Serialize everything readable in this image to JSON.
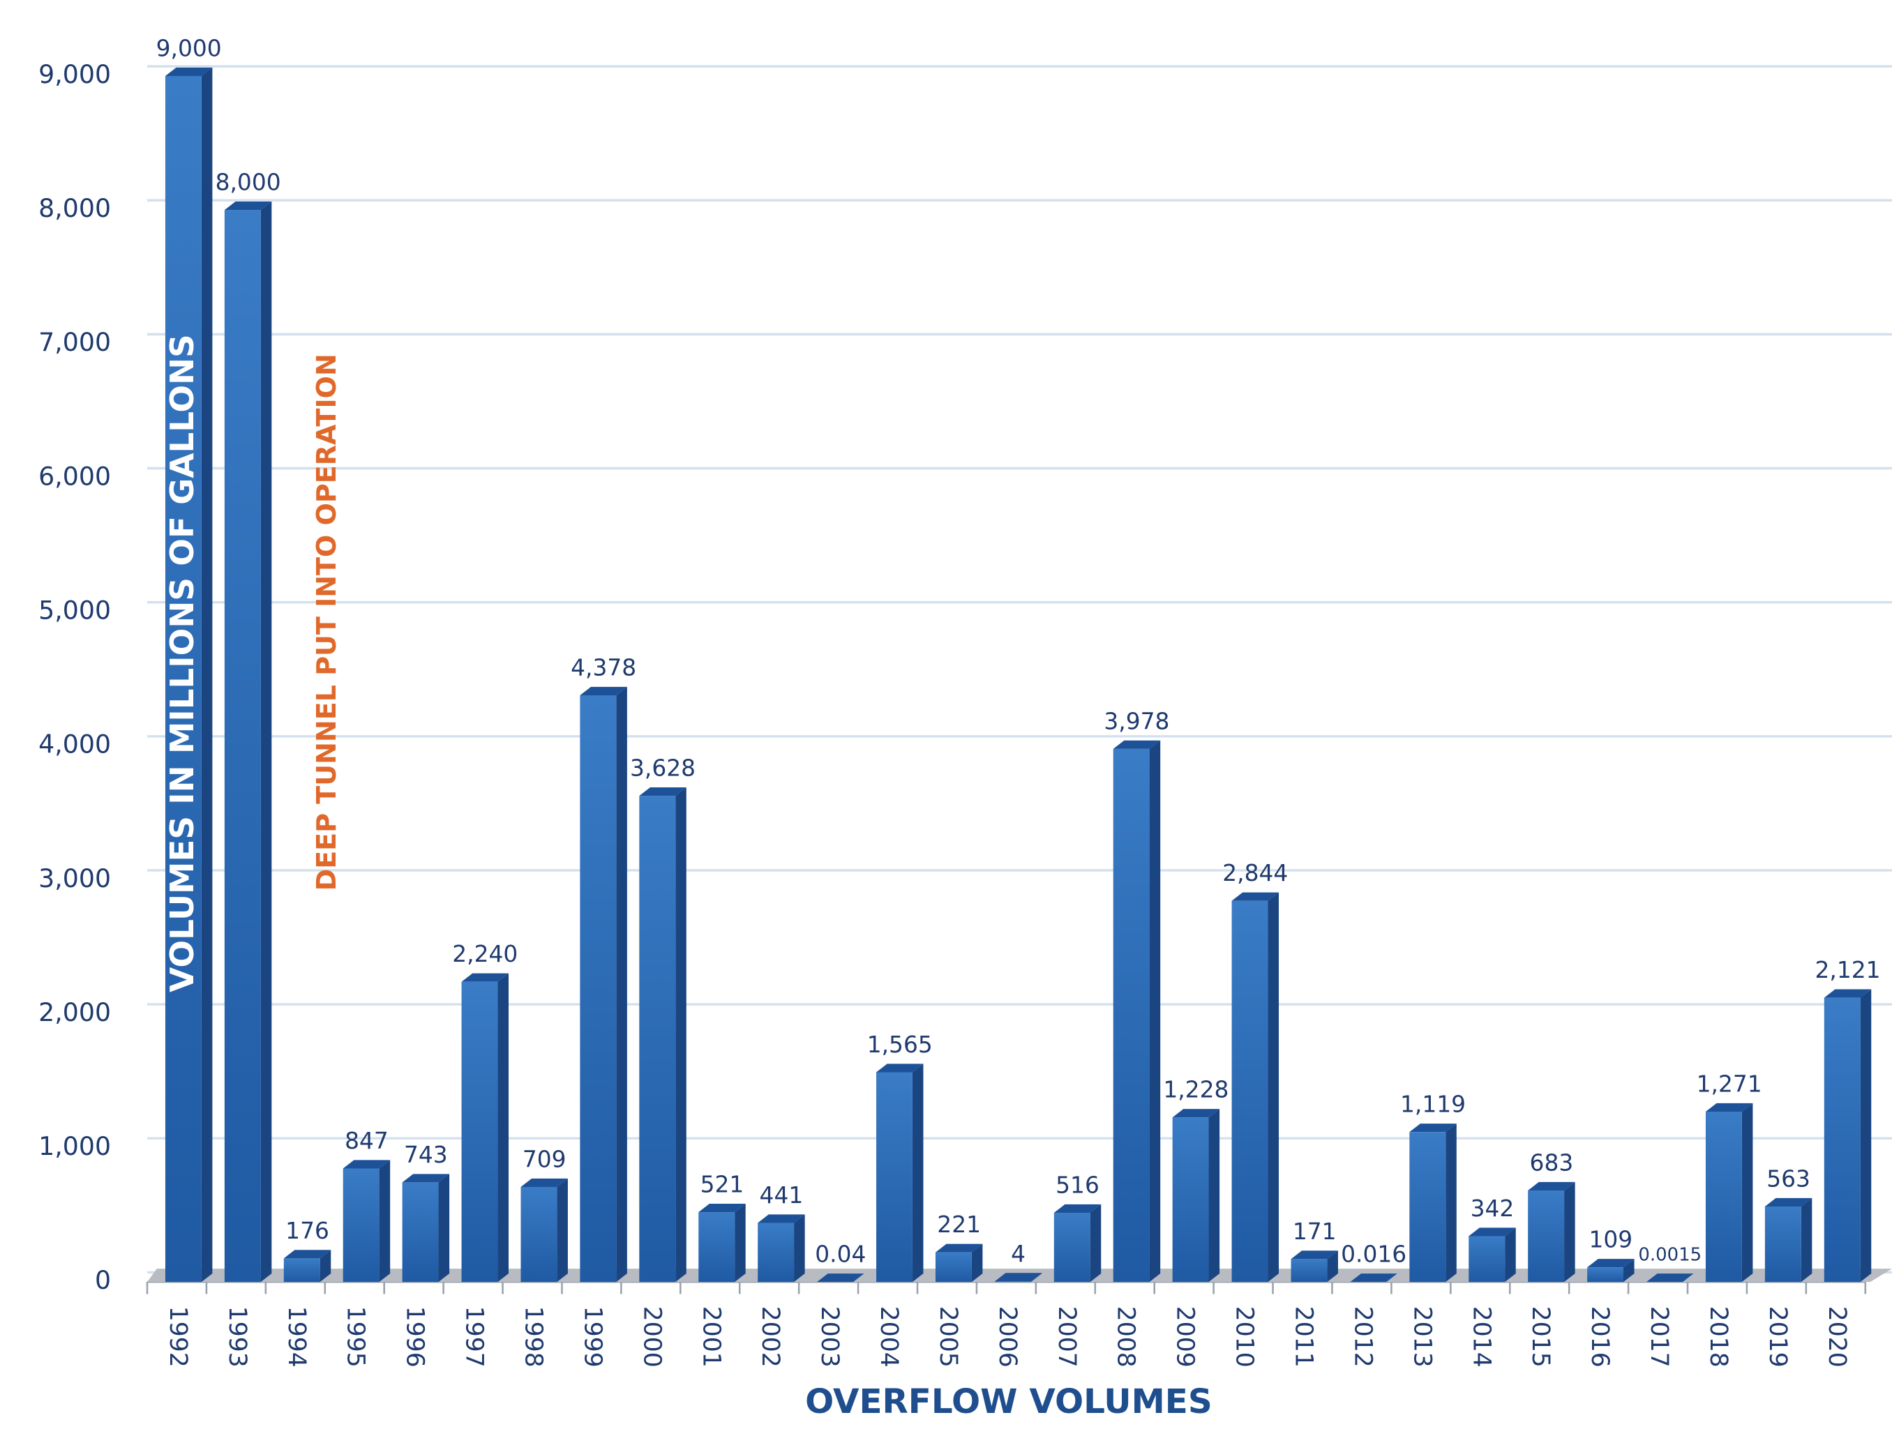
{
  "chart_data": {
    "type": "bar",
    "title": "OVERFLOW VOLUMES",
    "y_label": "VOLUMES IN MILLIONS OF GALLONS",
    "annotation": "DEEP TUNNEL PUT INTO OPERATION",
    "categories": [
      "1992",
      "1993",
      "1994",
      "1995",
      "1996",
      "1997",
      "1998",
      "1999",
      "2000",
      "2001",
      "2002",
      "2003",
      "2004",
      "2005",
      "2006",
      "2007",
      "2008",
      "2009",
      "2010",
      "2011",
      "2012",
      "2013",
      "2014",
      "2015",
      "2016",
      "2017",
      "2018",
      "2019",
      "2020"
    ],
    "values": [
      9000,
      8000,
      176,
      847,
      743,
      2240,
      709,
      4378,
      3628,
      521,
      441,
      0.04,
      1565,
      221,
      4,
      516,
      3978,
      1228,
      2844,
      171,
      0.016,
      1119,
      342,
      683,
      109,
      0.0015,
      1271,
      563,
      2121
    ],
    "value_labels": [
      "9,000",
      "8,000",
      "176",
      "847",
      "743",
      "2,240",
      "709",
      "4,378",
      "3,628",
      "521",
      "441",
      "0.04",
      "1,565",
      "221",
      "4",
      "516",
      "3,978",
      "1,228",
      "2,844",
      "171",
      "0.016",
      "1,119",
      "342",
      "683",
      "109",
      "0.0015",
      "1,271",
      "563",
      "2,121"
    ],
    "color": "#2e6db5",
    "ylim": [
      0,
      9000
    ],
    "yticks": [
      0,
      {
        "value": 1000,
        "label": "1,000"
      },
      {
        "value": 2000,
        "label": "2,000"
      },
      {
        "value": 3000,
        "label": "3,000"
      },
      {
        "value": 4000,
        "label": "4,000"
      },
      {
        "value": 5000,
        "label": "5,000"
      },
      {
        "value": 6000,
        "label": "6,000"
      },
      {
        "value": 7000,
        "label": "7,000"
      },
      {
        "value": 8000,
        "label": "8,000"
      },
      {
        "value": 9000,
        "label": "9,000"
      }
    ],
    "grid": true
  }
}
